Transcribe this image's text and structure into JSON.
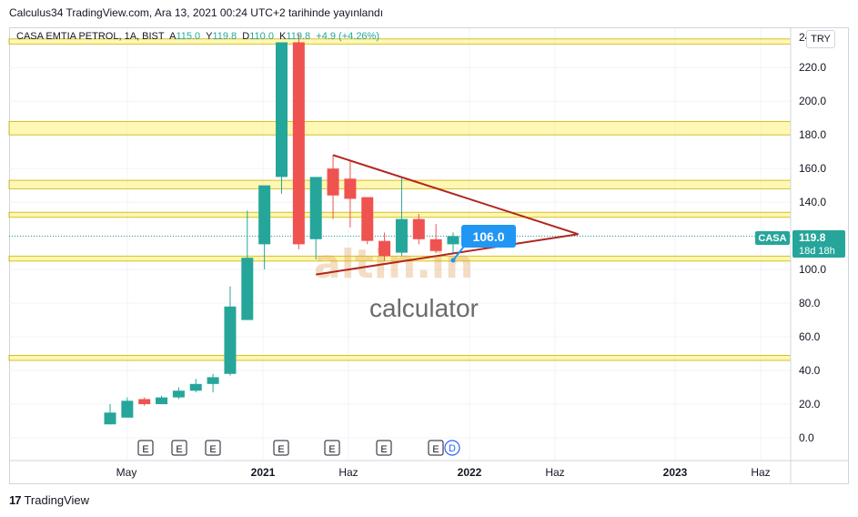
{
  "header": {
    "text": "Calculus34 TradingView.com, Ara 13, 2021 00:24 UTC+2 tarihinde yayınlandı"
  },
  "legend": {
    "symbol": "CASA EMTIA PETROL, 1A, BIST",
    "open_label": "A",
    "open": "115.0",
    "high_label": "Y",
    "high": "119.8",
    "low_label": "D",
    "low": "110.0",
    "close_label": "K",
    "close": "119.8",
    "change": "+4.9 (+4.26%)"
  },
  "currency_button": "TRY",
  "price_tag": {
    "ticker": "CASA",
    "price": "119.8",
    "countdown": "18d 18h"
  },
  "annotation": {
    "value": "106.0"
  },
  "watermark": {
    "logo": "altin.in",
    "text": "calculator"
  },
  "footer": {
    "brand": "TradingView"
  },
  "colors": {
    "up": "#26a69a",
    "down": "#ef5350",
    "zone": "#fff176",
    "trend": "#b2261f",
    "callout": "#2196f3"
  },
  "chart_data": {
    "type": "candlestick",
    "ylim": [
      -10,
      240
    ],
    "y_ticks": [
      0,
      20,
      40,
      60,
      80,
      100,
      120,
      140,
      160,
      180,
      200,
      220
    ],
    "y_top_label": "24",
    "x_ticks": [
      "May",
      "2021",
      "Haz",
      "2022",
      "Haz",
      "2023",
      "Haz"
    ],
    "earnings_markers": [
      "E",
      "E",
      "E",
      "E",
      "E",
      "E",
      "E"
    ],
    "dividend_marker": "D",
    "candles": [
      {
        "o": 8,
        "h": 20,
        "l": 8,
        "c": 15
      },
      {
        "o": 12,
        "h": 24,
        "l": 12,
        "c": 22
      },
      {
        "o": 23,
        "h": 24,
        "l": 19,
        "c": 20
      },
      {
        "o": 20,
        "h": 25,
        "l": 20,
        "c": 24
      },
      {
        "o": 24,
        "h": 30,
        "l": 23,
        "c": 28
      },
      {
        "o": 28,
        "h": 35,
        "l": 27,
        "c": 32
      },
      {
        "o": 32,
        "h": 38,
        "l": 27,
        "c": 36
      },
      {
        "o": 38,
        "h": 90,
        "l": 37,
        "c": 78
      },
      {
        "o": 70,
        "h": 135,
        "l": 70,
        "c": 107
      },
      {
        "o": 115,
        "h": 150,
        "l": 100,
        "c": 150
      },
      {
        "o": 155,
        "h": 235,
        "l": 145,
        "c": 235
      },
      {
        "o": 235,
        "h": 240,
        "l": 112,
        "c": 115
      },
      {
        "o": 118,
        "h": 155,
        "l": 106,
        "c": 155
      },
      {
        "o": 160,
        "h": 168,
        "l": 130,
        "c": 144
      },
      {
        "o": 154,
        "h": 165,
        "l": 125,
        "c": 142
      },
      {
        "o": 143,
        "h": 143,
        "l": 115,
        "c": 117
      },
      {
        "o": 117,
        "h": 122,
        "l": 105,
        "c": 108
      },
      {
        "o": 110,
        "h": 155,
        "l": 108,
        "c": 130
      },
      {
        "o": 130,
        "h": 133,
        "l": 115,
        "c": 118
      },
      {
        "o": 118,
        "h": 127,
        "l": 110,
        "c": 111
      },
      {
        "o": 115,
        "h": 122,
        "l": 110,
        "c": 119.8
      }
    ],
    "horizontal_zones": [
      [
        234,
        237
      ],
      [
        180,
        188
      ],
      [
        148,
        153
      ],
      [
        131,
        134
      ],
      [
        105,
        108
      ],
      [
        46,
        49
      ]
    ],
    "trendlines": [
      {
        "from": [
          13,
          168
        ],
        "to": [
          27.3,
          121
        ]
      },
      {
        "from": [
          12,
          97
        ],
        "to": [
          27.3,
          121
        ]
      }
    ],
    "last_price_line": 119.8
  }
}
